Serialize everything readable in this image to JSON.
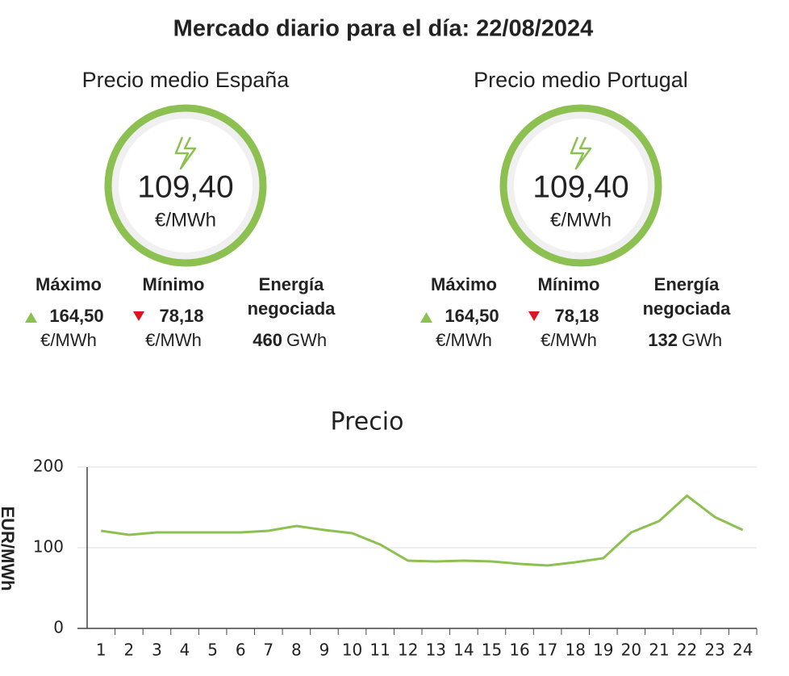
{
  "header": {
    "title": "Mercado diario para el día: 22/08/2024"
  },
  "panels": [
    {
      "title": "Precio medio España",
      "price": "109,40",
      "price_unit": "€/MWh",
      "max_label": "Máximo",
      "max_value": "164,50",
      "max_unit": "€/MWh",
      "min_label": "Mínimo",
      "min_value": "78,18",
      "min_unit": "€/MWh",
      "energy_label_1": "Energía",
      "energy_label_2": "negociada",
      "energy_value": 460,
      "energy_unit": "GWh"
    },
    {
      "title": "Precio medio Portugal",
      "price": "109,40",
      "price_unit": "€/MWh",
      "max_label": "Máximo",
      "max_value": "164,50",
      "max_unit": "€/MWh",
      "min_label": "Mínimo",
      "min_value": "78,18",
      "min_unit": "€/MWh",
      "energy_label_1": "Energía",
      "energy_label_2": "negociada",
      "energy_value": 132,
      "energy_unit": "GWh"
    }
  ],
  "chart_data": {
    "type": "line",
    "title": "Precio",
    "y_label": "EUR/MWh",
    "categories": [
      "1",
      "2",
      "3",
      "4",
      "5",
      "6",
      "7",
      "8",
      "9",
      "10",
      "11",
      "12",
      "13",
      "14",
      "15",
      "16",
      "17",
      "18",
      "19",
      "20",
      "21",
      "22",
      "23",
      "24"
    ],
    "values": [
      121,
      116,
      119,
      119,
      119,
      119,
      121,
      127,
      122,
      118,
      104,
      84,
      83,
      84,
      83,
      80,
      78,
      82,
      87,
      119,
      133,
      164.5,
      138,
      122
    ],
    "color": "#8cc152",
    "ylim": [
      0,
      200
    ],
    "yticks": [
      0,
      100,
      200
    ],
    "grid": true
  }
}
